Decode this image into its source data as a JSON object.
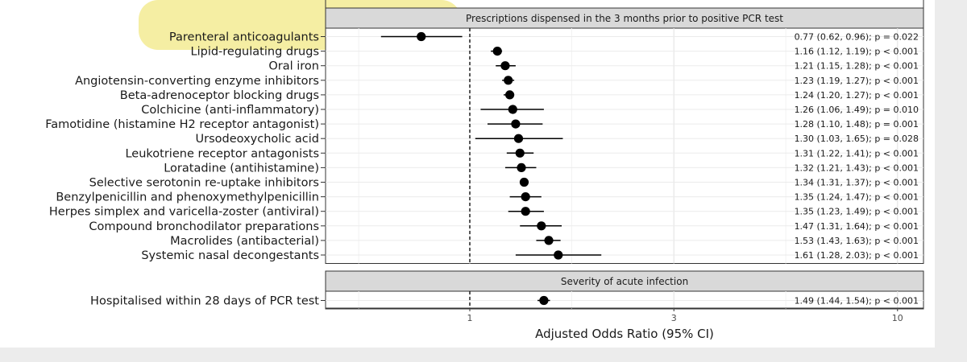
{
  "chart_data": {
    "type": "forest",
    "xlabel": "Adjusted Odds Ratio (95% CI)",
    "x_scale": "log",
    "xlim": [
      0.46,
      11.5
    ],
    "reference_line": 1,
    "xticks": [
      {
        "value": 1,
        "label": "1"
      },
      {
        "value": 3,
        "label": "3"
      },
      {
        "value": 10,
        "label": "10"
      }
    ],
    "grid": true,
    "highlight": {
      "color": "#f3ea8c",
      "row": "Parenteral anticoagulants"
    },
    "point_color": "#000000",
    "panels": [
      {
        "title": "Prescriptions dispensed in the 3 months prior to positive PCR test",
        "rows": [
          {
            "label": "Parenteral anticoagulants",
            "or": 0.77,
            "lo": 0.62,
            "hi": 0.96,
            "annotation": "0.77 (0.62, 0.96); p = 0.022"
          },
          {
            "label": "Lipid-regulating drugs",
            "or": 1.16,
            "lo": 1.12,
            "hi": 1.19,
            "annotation": "1.16 (1.12, 1.19); p < 0.001"
          },
          {
            "label": "Oral iron",
            "or": 1.21,
            "lo": 1.15,
            "hi": 1.28,
            "annotation": "1.21 (1.15, 1.28); p < 0.001"
          },
          {
            "label": "Angiotensin-converting enzyme inhibitors",
            "or": 1.23,
            "lo": 1.19,
            "hi": 1.27,
            "annotation": "1.23 (1.19, 1.27); p < 0.001"
          },
          {
            "label": "Beta-adrenoceptor blocking drugs",
            "or": 1.24,
            "lo": 1.2,
            "hi": 1.27,
            "annotation": "1.24 (1.20, 1.27); p < 0.001"
          },
          {
            "label": "Colchicine (anti-inflammatory)",
            "or": 1.26,
            "lo": 1.06,
            "hi": 1.49,
            "annotation": "1.26 (1.06, 1.49); p = 0.010"
          },
          {
            "label": "Famotidine (histamine H2 receptor antagonist)",
            "or": 1.28,
            "lo": 1.1,
            "hi": 1.48,
            "annotation": "1.28 (1.10, 1.48); p = 0.001"
          },
          {
            "label": "Ursodeoxycholic acid",
            "or": 1.3,
            "lo": 1.03,
            "hi": 1.65,
            "annotation": "1.30 (1.03, 1.65); p = 0.028"
          },
          {
            "label": "Leukotriene receptor antagonists",
            "or": 1.31,
            "lo": 1.22,
            "hi": 1.41,
            "annotation": "1.31 (1.22, 1.41); p < 0.001"
          },
          {
            "label": "Loratadine (antihistamine)",
            "or": 1.32,
            "lo": 1.21,
            "hi": 1.43,
            "annotation": "1.32 (1.21, 1.43); p < 0.001"
          },
          {
            "label": "Selective serotonin re-uptake inhibitors",
            "or": 1.34,
            "lo": 1.31,
            "hi": 1.37,
            "annotation": "1.34 (1.31, 1.37); p < 0.001"
          },
          {
            "label": "Benzylpenicillin and phenoxymethylpenicillin",
            "or": 1.35,
            "lo": 1.24,
            "hi": 1.47,
            "annotation": "1.35 (1.24, 1.47); p < 0.001"
          },
          {
            "label": "Herpes simplex and varicella-zoster (antiviral)",
            "or": 1.35,
            "lo": 1.23,
            "hi": 1.49,
            "annotation": "1.35 (1.23, 1.49); p < 0.001"
          },
          {
            "label": "Compound bronchodilator preparations",
            "or": 1.47,
            "lo": 1.31,
            "hi": 1.64,
            "annotation": "1.47 (1.31, 1.64); p < 0.001"
          },
          {
            "label": "Macrolides (antibacterial)",
            "or": 1.53,
            "lo": 1.43,
            "hi": 1.63,
            "annotation": "1.53 (1.43, 1.63); p < 0.001"
          },
          {
            "label": "Systemic nasal decongestants",
            "or": 1.61,
            "lo": 1.28,
            "hi": 2.03,
            "annotation": "1.61 (1.28, 2.03); p < 0.001"
          }
        ]
      },
      {
        "title": "Severity of acute infection",
        "rows": [
          {
            "label": "Hospitalised within 28 days of PCR test",
            "or": 1.49,
            "lo": 1.44,
            "hi": 1.54,
            "annotation": "1.49 (1.44, 1.54); p < 0.001"
          }
        ]
      }
    ]
  }
}
